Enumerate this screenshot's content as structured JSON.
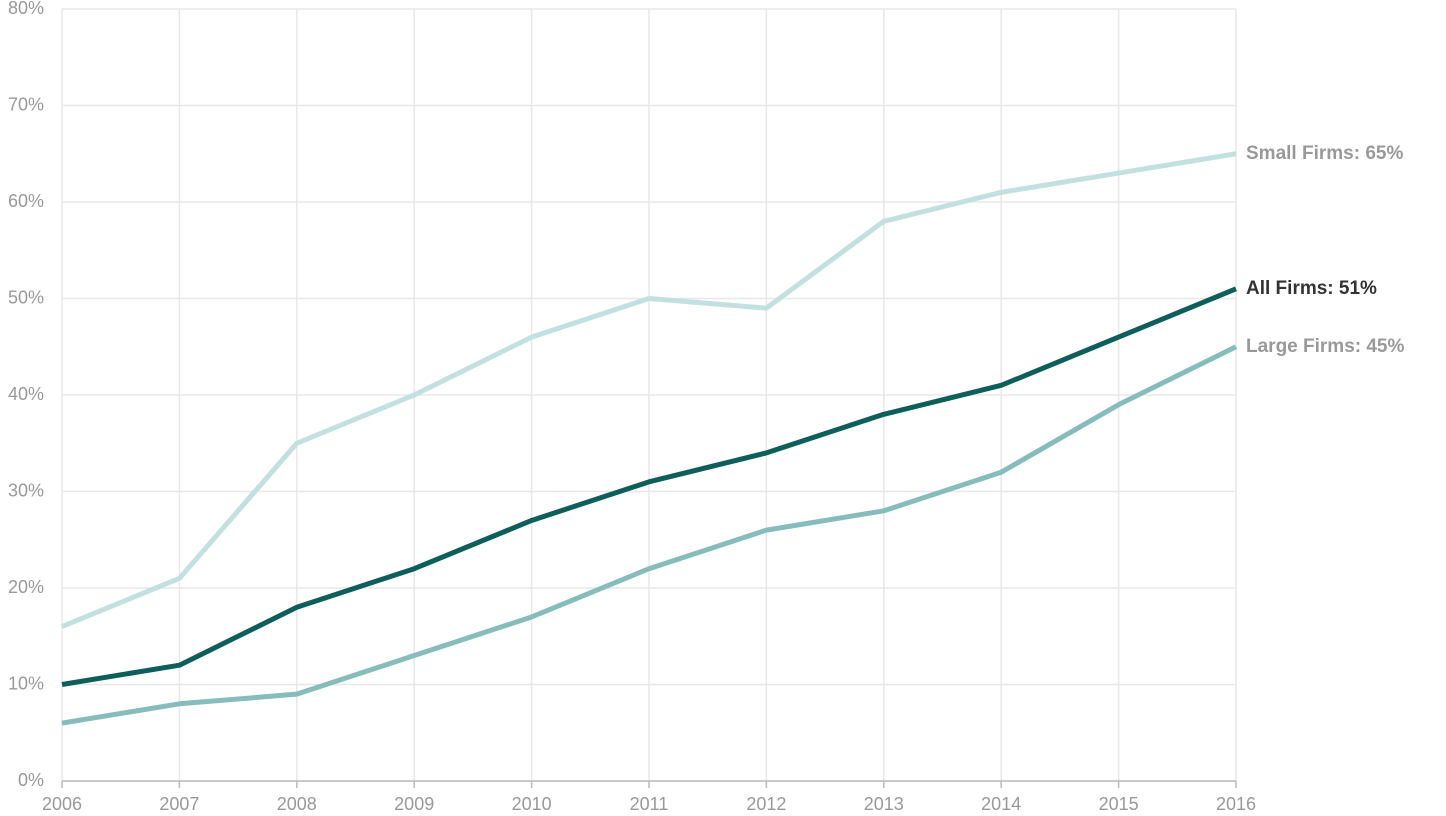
{
  "chart_data": {
    "type": "line",
    "x": [
      2006,
      2007,
      2008,
      2009,
      2010,
      2011,
      2012,
      2013,
      2014,
      2015,
      2016
    ],
    "xlim": [
      2006,
      2016
    ],
    "xticks": [
      2006,
      2007,
      2008,
      2009,
      2010,
      2011,
      2012,
      2013,
      2014,
      2015,
      2016
    ],
    "ylim": [
      0,
      80
    ],
    "yticks": [
      {
        "value": 0,
        "label": "0%"
      },
      {
        "value": 10,
        "label": "10%"
      },
      {
        "value": 20,
        "label": "20%"
      },
      {
        "value": 30,
        "label": "30%"
      },
      {
        "value": 40,
        "label": "40%"
      },
      {
        "value": 50,
        "label": "50%"
      },
      {
        "value": 60,
        "label": "60%"
      },
      {
        "value": 70,
        "label": "70%"
      },
      {
        "value": 80,
        "label": "80%"
      }
    ],
    "grid": true,
    "series": [
      {
        "name": "Small Firms: 65%",
        "color": "#c3e0e0",
        "label_color": "#999999",
        "values": [
          16,
          21,
          35,
          40,
          46,
          50,
          49,
          58,
          61,
          63,
          65
        ]
      },
      {
        "name": "All Firms: 51%",
        "color": "#0e5f5b",
        "label_color": "#333333",
        "values": [
          10,
          12,
          18,
          22,
          27,
          31,
          34,
          38,
          41,
          46,
          51
        ]
      },
      {
        "name": "Large Firms: 45%",
        "color": "#86bdbc",
        "label_color": "#999999",
        "values": [
          6,
          8,
          9,
          13,
          17,
          22,
          26,
          28,
          32,
          39,
          45
        ]
      }
    ]
  }
}
